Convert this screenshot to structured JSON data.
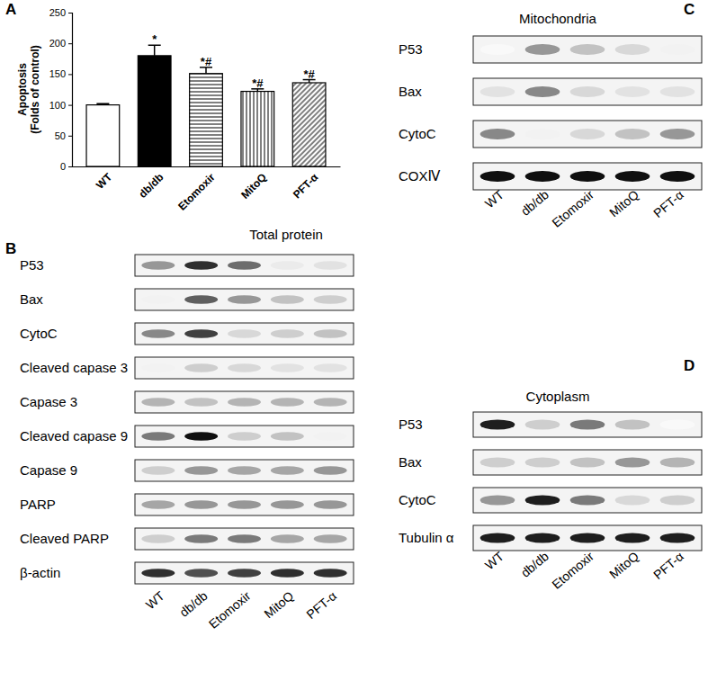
{
  "chart_data": {
    "type": "bar",
    "panel_label": "A",
    "y_label": [
      "Apoptosis",
      "(Folds of control)"
    ],
    "categories": [
      "WT",
      "db/db",
      "Etomoxir",
      "MitoQ",
      "PFT-α"
    ],
    "values": [
      100,
      180,
      151,
      122,
      136
    ],
    "errors": [
      2,
      17,
      10,
      4,
      5
    ],
    "colors": [
      "#ffffff",
      "#000000",
      "#ffffff",
      "#ffffff",
      "#ffffff"
    ],
    "annotations": [
      {
        "category": "db/db",
        "text": "*"
      },
      {
        "category": "Etomoxir",
        "text": "*#"
      },
      {
        "category": "MitoQ",
        "text": "*#"
      },
      {
        "category": "PFT-α",
        "text": "*#"
      }
    ],
    "ylim": [
      0,
      250
    ],
    "yticks": [
      0,
      50,
      100,
      150,
      200,
      250
    ],
    "grid": false
  },
  "intensity_lim": [
    0,
    1
  ],
  "blots": [
    {
      "panel_label": "B",
      "title": "Total protein",
      "lanes": [
        "WT",
        "db/db",
        "Etomoxir",
        "MitoQ",
        "PFT-α"
      ],
      "rows": [
        {
          "label": "P53",
          "values": [
            0.5,
            0.85,
            0.65,
            0.15,
            0.2
          ]
        },
        {
          "label": "Bax",
          "values": [
            0.1,
            0.7,
            0.5,
            0.35,
            0.3
          ]
        },
        {
          "label": "CytoC",
          "values": [
            0.55,
            0.8,
            0.25,
            0.3,
            0.35
          ]
        },
        {
          "label": "Cleaved capase 3",
          "values": [
            0.1,
            0.3,
            0.25,
            0.2,
            0.2
          ]
        },
        {
          "label": "Capase 3",
          "values": [
            0.4,
            0.35,
            0.4,
            0.4,
            0.4
          ]
        },
        {
          "label": "Cleaved capase 9",
          "values": [
            0.6,
            0.95,
            0.3,
            0.35,
            0.1
          ]
        },
        {
          "label": "Capase 9",
          "values": [
            0.3,
            0.5,
            0.45,
            0.45,
            0.5
          ]
        },
        {
          "label": "PARP",
          "values": [
            0.45,
            0.5,
            0.5,
            0.5,
            0.5
          ]
        },
        {
          "label": "Cleaved PARP",
          "values": [
            0.3,
            0.6,
            0.6,
            0.45,
            0.45
          ]
        },
        {
          "label": "β-actin",
          "values": [
            0.85,
            0.75,
            0.8,
            0.85,
            0.85
          ]
        }
      ]
    },
    {
      "panel_label": "C",
      "title": "Mitochondria",
      "lanes": [
        "WT",
        "db/db",
        "Etomoxir",
        "MitoQ",
        "PFT-α"
      ],
      "rows": [
        {
          "label": "P53",
          "values": [
            0.05,
            0.5,
            0.35,
            0.25,
            0.1
          ]
        },
        {
          "label": "Bax",
          "values": [
            0.2,
            0.55,
            0.25,
            0.2,
            0.2
          ]
        },
        {
          "label": "CytoC",
          "values": [
            0.55,
            0.1,
            0.25,
            0.35,
            0.5
          ]
        },
        {
          "label": "COXⅣ",
          "values": [
            0.95,
            0.95,
            0.95,
            0.95,
            0.95
          ]
        }
      ]
    },
    {
      "panel_label": "D",
      "title": "Cytoplasm",
      "lanes": [
        "WT",
        "db/db",
        "Etomoxir",
        "MitoQ",
        "PFT-α"
      ],
      "rows": [
        {
          "label": "P53",
          "values": [
            0.9,
            0.3,
            0.6,
            0.35,
            0.05
          ]
        },
        {
          "label": "Bax",
          "values": [
            0.3,
            0.3,
            0.35,
            0.5,
            0.4
          ]
        },
        {
          "label": "CytoC",
          "values": [
            0.5,
            0.9,
            0.6,
            0.25,
            0.3
          ]
        },
        {
          "label": "Tubulin α",
          "values": [
            0.9,
            0.9,
            0.9,
            0.9,
            0.9
          ]
        }
      ]
    }
  ]
}
